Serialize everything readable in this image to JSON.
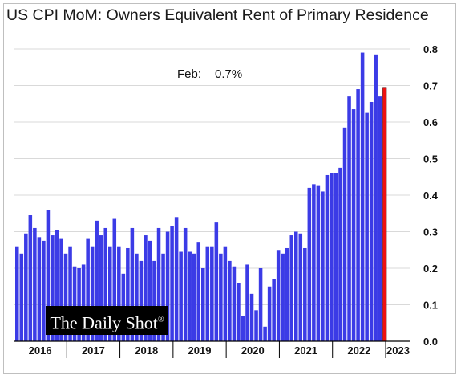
{
  "chart_data": {
    "type": "bar",
    "title": "US CPI MoM: Owners Equivalent Rent of Primary Residence",
    "annotation": {
      "label": "Feb:",
      "value": "0.7%"
    },
    "ylim": [
      0,
      0.8
    ],
    "yticks": [
      "0.0",
      "0.1",
      "0.2",
      "0.3",
      "0.4",
      "0.5",
      "0.6",
      "0.7",
      "0.8"
    ],
    "xticks": [
      "2016",
      "2017",
      "2018",
      "2019",
      "2020",
      "2021",
      "2022",
      "2023"
    ],
    "grid": true,
    "colors": {
      "bars": "#3b3be6",
      "latest": "#ee1111",
      "grid": "#d9d9d9"
    },
    "series": [
      {
        "values": [
          0.26,
          0.24,
          0.295,
          0.345,
          0.31,
          0.285,
          0.275,
          0.36,
          0.29,
          0.305,
          0.28,
          0.24,
          0.26,
          0.205,
          0.2,
          0.21,
          0.28,
          0.26,
          0.33,
          0.29,
          0.31,
          0.26,
          0.335,
          0.26,
          0.185,
          0.255,
          0.31,
          0.24,
          0.22,
          0.29,
          0.275,
          0.22,
          0.31,
          0.24,
          0.3,
          0.315,
          0.34,
          0.245,
          0.31,
          0.245,
          0.24,
          0.27,
          0.2,
          0.26,
          0.26,
          0.325,
          0.24,
          0.26,
          0.22,
          0.205,
          0.16,
          0.07,
          0.21,
          0.13,
          0.085,
          0.2,
          0.04,
          0.15,
          0.17,
          0.25,
          0.24,
          0.255,
          0.29,
          0.3,
          0.295,
          0.255,
          0.42,
          0.43,
          0.425,
          0.41,
          0.455,
          0.46,
          0.46,
          0.475,
          0.585,
          0.67,
          0.635,
          0.69,
          0.79,
          0.625,
          0.655,
          0.785,
          0.67,
          0.695
        ]
      }
    ]
  },
  "watermark": {
    "text": "The Daily Shot",
    "mark": "®"
  }
}
